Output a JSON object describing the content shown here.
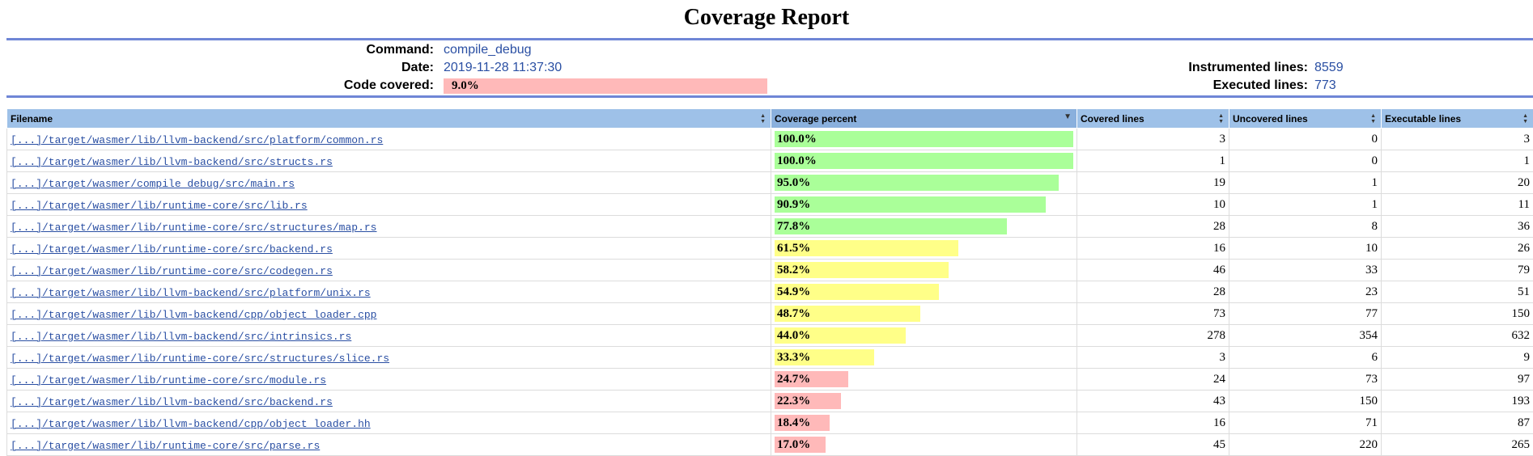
{
  "report": {
    "title": "Coverage Report"
  },
  "summary": {
    "command_label": "Command:",
    "command_value": "compile_debug",
    "date_label": "Date:",
    "date_value": "2019-11-28 11:37:30",
    "covered_label": "Code covered:",
    "covered_value": "9.0%",
    "covered_fraction": 0.09,
    "instrumented_label": "Instrumented lines:",
    "instrumented_value": "8559",
    "executed_label": "Executed lines:",
    "executed_value": "773"
  },
  "table": {
    "columns": [
      {
        "label": "Filename",
        "sorted": false
      },
      {
        "label": "Coverage percent",
        "sorted": true
      },
      {
        "label": "Covered lines",
        "sorted": false
      },
      {
        "label": "Uncovered lines",
        "sorted": false
      },
      {
        "label": "Executable lines",
        "sorted": false
      }
    ],
    "rows": [
      {
        "file": "[...]/target/wasmer/lib/llvm-backend/src/platform/common.rs",
        "pct": "100.0%",
        "fraction": 1.0,
        "covered": "3",
        "uncovered": "0",
        "executable": "3"
      },
      {
        "file": "[...]/target/wasmer/lib/llvm-backend/src/structs.rs",
        "pct": "100.0%",
        "fraction": 1.0,
        "covered": "1",
        "uncovered": "0",
        "executable": "1"
      },
      {
        "file": "[...]/target/wasmer/compile_debug/src/main.rs",
        "pct": "95.0%",
        "fraction": 0.95,
        "covered": "19",
        "uncovered": "1",
        "executable": "20"
      },
      {
        "file": "[...]/target/wasmer/lib/runtime-core/src/lib.rs",
        "pct": "90.9%",
        "fraction": 0.909,
        "covered": "10",
        "uncovered": "1",
        "executable": "11"
      },
      {
        "file": "[...]/target/wasmer/lib/runtime-core/src/structures/map.rs",
        "pct": "77.8%",
        "fraction": 0.778,
        "covered": "28",
        "uncovered": "8",
        "executable": "36"
      },
      {
        "file": "[...]/target/wasmer/lib/runtime-core/src/backend.rs",
        "pct": "61.5%",
        "fraction": 0.615,
        "covered": "16",
        "uncovered": "10",
        "executable": "26"
      },
      {
        "file": "[...]/target/wasmer/lib/runtime-core/src/codegen.rs",
        "pct": "58.2%",
        "fraction": 0.582,
        "covered": "46",
        "uncovered": "33",
        "executable": "79"
      },
      {
        "file": "[...]/target/wasmer/lib/llvm-backend/src/platform/unix.rs",
        "pct": "54.9%",
        "fraction": 0.549,
        "covered": "28",
        "uncovered": "23",
        "executable": "51"
      },
      {
        "file": "[...]/target/wasmer/lib/llvm-backend/cpp/object_loader.cpp",
        "pct": "48.7%",
        "fraction": 0.487,
        "covered": "73",
        "uncovered": "77",
        "executable": "150"
      },
      {
        "file": "[...]/target/wasmer/lib/llvm-backend/src/intrinsics.rs",
        "pct": "44.0%",
        "fraction": 0.44,
        "covered": "278",
        "uncovered": "354",
        "executable": "632"
      },
      {
        "file": "[...]/target/wasmer/lib/runtime-core/src/structures/slice.rs",
        "pct": "33.3%",
        "fraction": 0.333,
        "covered": "3",
        "uncovered": "6",
        "executable": "9"
      },
      {
        "file": "[...]/target/wasmer/lib/runtime-core/src/module.rs",
        "pct": "24.7%",
        "fraction": 0.247,
        "covered": "24",
        "uncovered": "73",
        "executable": "97"
      },
      {
        "file": "[...]/target/wasmer/lib/llvm-backend/src/backend.rs",
        "pct": "22.3%",
        "fraction": 0.223,
        "covered": "43",
        "uncovered": "150",
        "executable": "193"
      },
      {
        "file": "[...]/target/wasmer/lib/llvm-backend/cpp/object_loader.hh",
        "pct": "18.4%",
        "fraction": 0.184,
        "covered": "16",
        "uncovered": "71",
        "executable": "87"
      },
      {
        "file": "[...]/target/wasmer/lib/runtime-core/src/parse.rs",
        "pct": "17.0%",
        "fraction": 0.17,
        "covered": "45",
        "uncovered": "220",
        "executable": "265"
      }
    ]
  },
  "colors": {
    "high": "#aaff99",
    "medium": "#ffff88",
    "low": "#ffb9b9",
    "header": "#9ec1e8",
    "rule": "#6f86d6",
    "link": "#2a4fa3"
  },
  "icons": {
    "sort": "sort-icon",
    "sort_desc": "sort-desc-icon"
  }
}
